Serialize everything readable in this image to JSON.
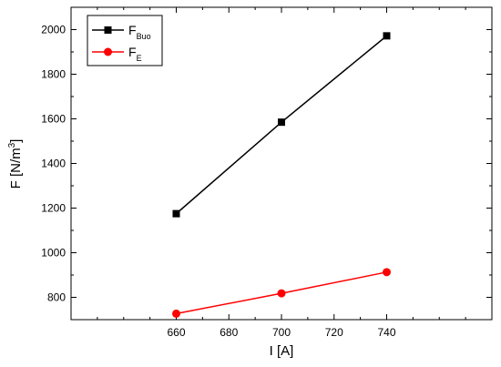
{
  "chart_data": {
    "type": "line",
    "xlabel": "I [A]",
    "ylabel": {
      "main": "F [N/m",
      "sup": "3",
      "close": "]"
    },
    "x": [
      660,
      700,
      740
    ],
    "xlim": [
      620,
      780
    ],
    "ylim": [
      700,
      2100
    ],
    "xticks": [
      660,
      680,
      700,
      720,
      740
    ],
    "yticks": [
      800,
      1000,
      1200,
      1400,
      1600,
      1800,
      2000
    ],
    "grid": false,
    "legend_position": "top-left",
    "series": [
      {
        "name_main": "F",
        "name_sub": "Buo",
        "color": "#000000",
        "marker": "square",
        "values": [
          1175,
          1585,
          1972
        ]
      },
      {
        "name_main": "F",
        "name_sub": "E",
        "color": "#ff0000",
        "marker": "circle",
        "values": [
          727,
          818,
          913
        ]
      }
    ]
  }
}
